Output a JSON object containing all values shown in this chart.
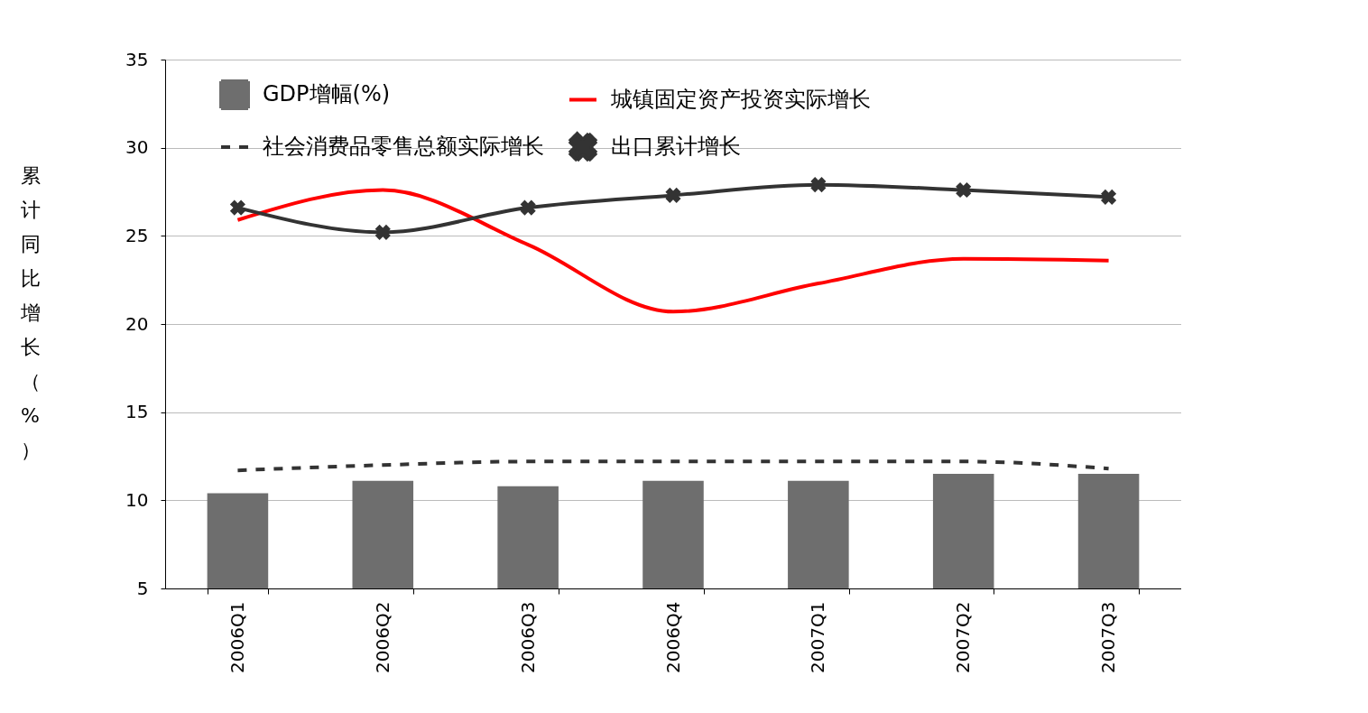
{
  "chart_data": {
    "type": "bar",
    "ylabel": "累计同比增长（%）",
    "categories": [
      "2006Q1",
      "2006Q2",
      "2006Q3",
      "2006Q4",
      "2007Q1",
      "2007Q2",
      "2007Q3"
    ],
    "series": [
      {
        "name": "GDP增幅(%)",
        "color": "#6e6e6e",
        "values": [
          10.4,
          11.1,
          10.8,
          11.1,
          11.1,
          11.5,
          11.5
        ]
      },
      {
        "name": "城镇固定资产投资实际增长",
        "type": "line",
        "color": "#ff0000",
        "line_style": "solid",
        "marker": "none",
        "values": [
          25.9,
          27.6,
          24.5,
          20.7,
          22.3,
          23.7,
          23.6
        ]
      },
      {
        "name": "社会消费品零售总额实际增长",
        "type": "line",
        "color": "#333333",
        "line_style": "dashed",
        "marker": "none",
        "values": [
          11.7,
          12.0,
          12.2,
          12.2,
          12.2,
          12.2,
          11.8
        ]
      },
      {
        "name": "出口累计增长",
        "type": "line",
        "color": "#333333",
        "line_style": "solid",
        "marker": "cross",
        "values": [
          26.6,
          25.2,
          26.6,
          27.3,
          27.9,
          27.6,
          27.2
        ]
      }
    ],
    "ylim": [
      5,
      35
    ],
    "yticks": [
      5,
      10,
      15,
      20,
      25,
      30,
      35
    ],
    "grid": "y",
    "legend": "top"
  }
}
